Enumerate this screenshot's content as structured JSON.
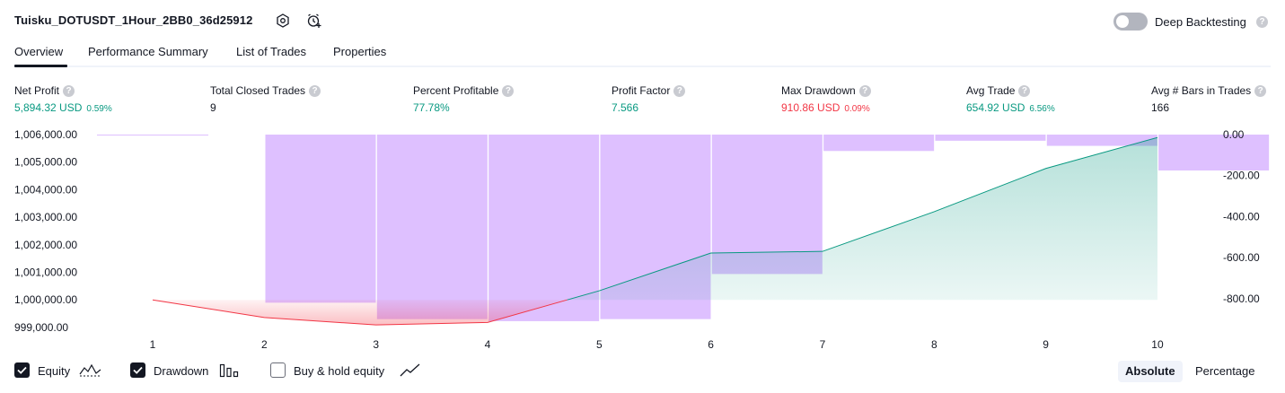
{
  "header": {
    "strategy_title": "Tuisku_DOTUSDT_1Hour_2BB0_36d25912",
    "deep_backtesting_label": "Deep Backtesting",
    "deep_backtesting_enabled": false
  },
  "tabs": [
    {
      "label": "Overview",
      "active": true
    },
    {
      "label": "Performance Summary",
      "active": false
    },
    {
      "label": "List of Trades",
      "active": false
    },
    {
      "label": "Properties",
      "active": false
    }
  ],
  "metrics": {
    "net_profit": {
      "label": "Net Profit",
      "value": "5,894.32 USD",
      "pct": "0.59%"
    },
    "total_closed_trades": {
      "label": "Total Closed Trades",
      "value": "9"
    },
    "percent_profitable": {
      "label": "Percent Profitable",
      "value": "77.78%"
    },
    "profit_factor": {
      "label": "Profit Factor",
      "value": "7.566"
    },
    "max_drawdown": {
      "label": "Max Drawdown",
      "value": "910.86 USD",
      "pct": "0.09%"
    },
    "avg_trade": {
      "label": "Avg Trade",
      "value": "654.92 USD",
      "pct": "6.56%"
    },
    "avg_bars": {
      "label": "Avg # Bars in Trades",
      "value": "166"
    }
  },
  "chart_data": {
    "type": "line",
    "x": [
      1,
      2,
      3,
      4,
      5,
      6,
      7,
      8,
      9,
      10
    ],
    "x_tick_labels": [
      "1",
      "2",
      "3",
      "4",
      "5",
      "6",
      "7",
      "8",
      "9",
      "10"
    ],
    "left_axis": {
      "ticks": [
        "1,006,000.00",
        "1,005,000.00",
        "1,004,000.00",
        "1,003,000.00",
        "1,002,000.00",
        "1,001,000.00",
        "1,000,000.00",
        "999,000.00"
      ],
      "range": [
        998900,
        1006000
      ]
    },
    "right_axis": {
      "ticks": [
        "0.00",
        "-200.00",
        "-400.00",
        "-600.00",
        "-800.00"
      ],
      "range": [
        -920,
        0
      ]
    },
    "equity": {
      "name": "Equity",
      "values": [
        1000000,
        999360,
        999090,
        999180,
        1000330,
        1001700,
        1001760,
        1003200,
        1004770,
        1005894
      ],
      "colors": {
        "gain": "#089981",
        "loss": "#f23645"
      }
    },
    "drawdown": {
      "name": "Drawdown",
      "values": [
        0,
        -820,
        -900,
        -910,
        -900,
        -680,
        -80,
        -30,
        -55,
        -175
      ],
      "color": "#d1a8ff"
    },
    "grid": false
  },
  "footer": {
    "checkboxes": [
      {
        "label": "Equity",
        "checked": true,
        "icon": "equity-icon"
      },
      {
        "label": "Drawdown",
        "checked": true,
        "icon": "drawdown-icon"
      },
      {
        "label": "Buy & hold equity",
        "checked": false,
        "icon": "buy-hold-icon"
      }
    ],
    "modes": [
      {
        "label": "Absolute",
        "active": true
      },
      {
        "label": "Percentage",
        "active": false
      }
    ]
  }
}
